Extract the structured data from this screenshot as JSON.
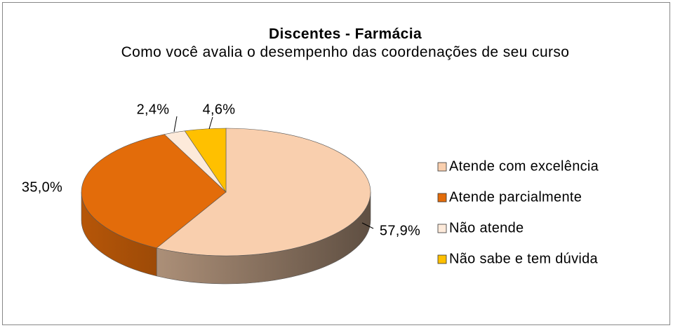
{
  "chart_data": {
    "type": "pie",
    "title": "Discentes - Farmácia",
    "subtitle": "Como você avalia o desempenho das coordenações de seu curso",
    "categories": [
      "Atende com excelência",
      "Atende parcialmente",
      "Não atende",
      "Não sabe e tem dúvida"
    ],
    "values": [
      57.9,
      35.0,
      2.4,
      4.6
    ],
    "value_labels": [
      "57,9%",
      "35,0%",
      "2,4%",
      "4,6%"
    ],
    "colors": [
      "#f9cfae",
      "#e36c0a",
      "#fdeada",
      "#ffc000"
    ],
    "legend": "right"
  }
}
